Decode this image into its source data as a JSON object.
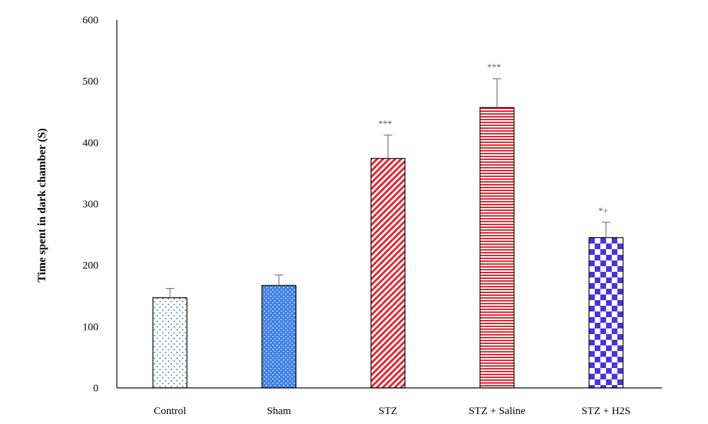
{
  "chart_data": {
    "type": "bar",
    "title": "",
    "xlabel": "",
    "ylabel": "Time spent in dark chamber (S)",
    "ylim": [
      0,
      600
    ],
    "yticks": [
      0,
      100,
      200,
      300,
      400,
      500,
      600
    ],
    "grid": false,
    "legend": "none",
    "categories": [
      "Control",
      "Sham",
      "STZ",
      "STZ + Saline",
      "STZ + H2S"
    ],
    "values": [
      147,
      167,
      374,
      457,
      245
    ],
    "errors": [
      15,
      17,
      38,
      47,
      25
    ],
    "annotations": [
      "",
      "",
      "***",
      "***",
      "*+"
    ],
    "patterns": [
      "sparse-dots",
      "dense-dots",
      "diagonal-stripes",
      "horizontal-stripes",
      "checkerboard"
    ],
    "colors": [
      "#4a7fd4",
      "#3d7fe6",
      "#e8212a",
      "#e8212a",
      "#4b32e0"
    ]
  }
}
